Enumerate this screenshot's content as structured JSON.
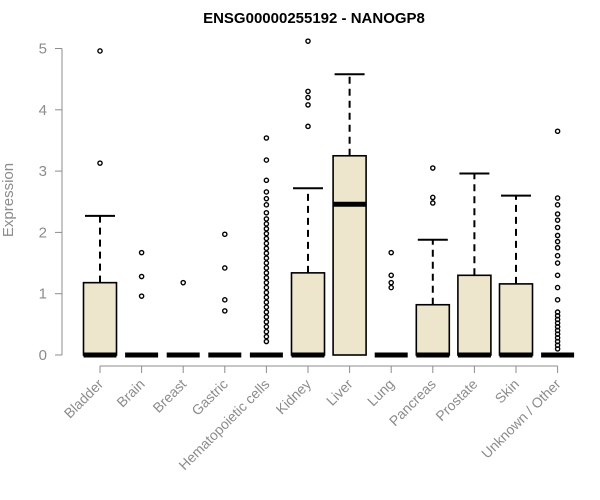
{
  "chart_data": {
    "type": "boxplot",
    "title": "ENSG00000255192 - NANOGP8",
    "xlabel": "",
    "ylabel": "Expression",
    "ylim": [
      0,
      5.2
    ],
    "yticks": [
      0,
      1,
      2,
      3,
      4,
      5
    ],
    "grid": false,
    "colors": {
      "box_fill": "#ede6cd",
      "stroke": "#000000",
      "axis": "#8c8c8c"
    },
    "categories": [
      "Bladder",
      "Brain",
      "Breast",
      "Gastric",
      "Hematopoietic cells",
      "Kidney",
      "Liver",
      "Lung",
      "Pancreas",
      "Prostate",
      "Skin",
      "Unknown / Other"
    ],
    "boxes": [
      {
        "category": "Bladder",
        "q1": 0,
        "median": 0,
        "q3": 1.18,
        "whisker_low": 0,
        "whisker_high": 2.27,
        "outliers": [
          3.13,
          4.96
        ]
      },
      {
        "category": "Brain",
        "q1": 0,
        "median": 0,
        "q3": 0,
        "whisker_low": 0,
        "whisker_high": 0,
        "outliers": [
          0.96,
          1.28,
          1.67
        ]
      },
      {
        "category": "Breast",
        "q1": 0,
        "median": 0,
        "q3": 0,
        "whisker_low": 0,
        "whisker_high": 0,
        "outliers": [
          1.18
        ]
      },
      {
        "category": "Gastric",
        "q1": 0,
        "median": 0,
        "q3": 0,
        "whisker_low": 0,
        "whisker_high": 0,
        "outliers": [
          0.72,
          0.9,
          1.42,
          1.97
        ]
      },
      {
        "category": "Hematopoietic cells",
        "q1": 0,
        "median": 0,
        "q3": 0,
        "whisker_low": 0,
        "whisker_high": 0,
        "outliers": [
          0.22,
          0.3,
          0.38,
          0.46,
          0.54,
          0.62,
          0.7,
          0.78,
          0.86,
          0.94,
          1.02,
          1.1,
          1.18,
          1.26,
          1.34,
          1.42,
          1.5,
          1.58,
          1.66,
          1.74,
          1.82,
          1.9,
          1.98,
          2.06,
          2.14,
          2.22,
          2.32,
          2.45,
          2.55,
          2.66,
          2.85,
          3.18,
          3.54
        ]
      },
      {
        "category": "Kidney",
        "q1": 0,
        "median": 0,
        "q3": 1.34,
        "whisker_low": 0,
        "whisker_high": 2.72,
        "outliers": [
          3.73,
          4.08,
          4.2,
          4.3,
          5.12
        ]
      },
      {
        "category": "Liver",
        "q1": 0,
        "median": 2.46,
        "q3": 3.25,
        "whisker_low": 0,
        "whisker_high": 4.58,
        "outliers": []
      },
      {
        "category": "Lung",
        "q1": 0,
        "median": 0,
        "q3": 0,
        "whisker_low": 0,
        "whisker_high": 0,
        "outliers": [
          1.1,
          1.18,
          1.3,
          1.67
        ]
      },
      {
        "category": "Pancreas",
        "q1": 0,
        "median": 0,
        "q3": 0.82,
        "whisker_low": 0,
        "whisker_high": 1.88,
        "outliers": [
          2.48,
          2.57,
          3.05
        ]
      },
      {
        "category": "Prostate",
        "q1": 0,
        "median": 0,
        "q3": 1.3,
        "whisker_low": 0,
        "whisker_high": 2.96,
        "outliers": []
      },
      {
        "category": "Skin",
        "q1": 0,
        "median": 0,
        "q3": 1.16,
        "whisker_low": 0,
        "whisker_high": 2.6,
        "outliers": []
      },
      {
        "category": "Unknown / Other",
        "q1": 0,
        "median": 0,
        "q3": 0,
        "whisker_low": 0,
        "whisker_high": 0,
        "outliers": [
          0.1,
          0.16,
          0.22,
          0.28,
          0.34,
          0.4,
          0.46,
          0.52,
          0.58,
          0.64,
          0.7,
          0.9,
          1.1,
          1.3,
          1.5,
          1.62,
          1.75,
          1.85,
          1.95,
          2.08,
          2.2,
          2.3,
          2.45,
          2.56,
          3.65
        ]
      }
    ]
  }
}
